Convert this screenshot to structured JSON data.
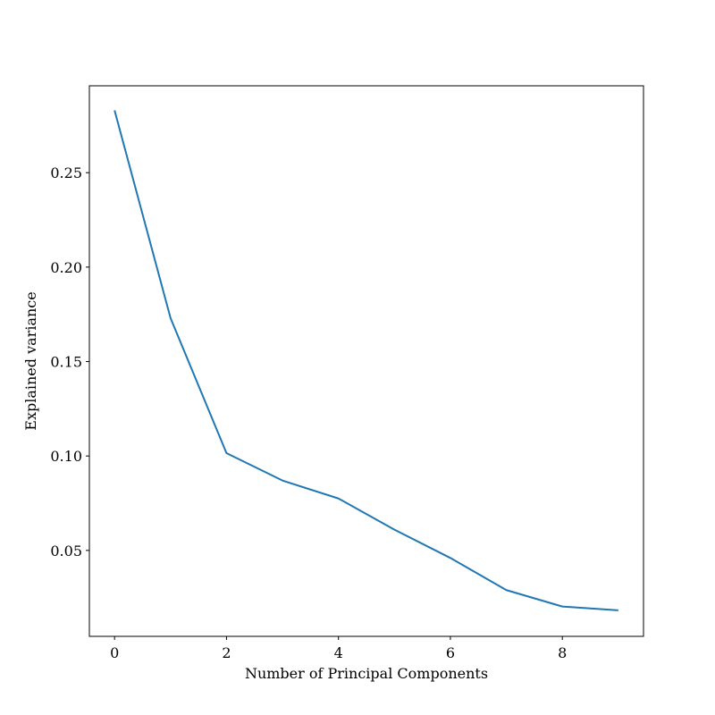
{
  "chart_data": {
    "type": "line",
    "title": "",
    "xlabel": "Number of Principal Components",
    "ylabel": "Explained variance",
    "xlim": [
      -0.45,
      9.45
    ],
    "ylim": [
      0.0045,
      0.296
    ],
    "xticks": [
      0,
      2,
      4,
      6,
      8
    ],
    "xtick_labels": [
      "0",
      "2",
      "4",
      "6",
      "8"
    ],
    "yticks": [
      0.05,
      0.1,
      0.15,
      0.2,
      0.25
    ],
    "ytick_labels": [
      "0.05",
      "0.10",
      "0.15",
      "0.20",
      "0.25"
    ],
    "grid": false,
    "legend": "none",
    "series": [
      {
        "color": "#1f77b4",
        "x": [
          0,
          1,
          2,
          3,
          4,
          5,
          6,
          7,
          8,
          9
        ],
        "y": [
          0.283,
          0.173,
          0.1015,
          0.087,
          0.0775,
          0.061,
          0.046,
          0.029,
          0.0203,
          0.0183
        ]
      }
    ]
  }
}
